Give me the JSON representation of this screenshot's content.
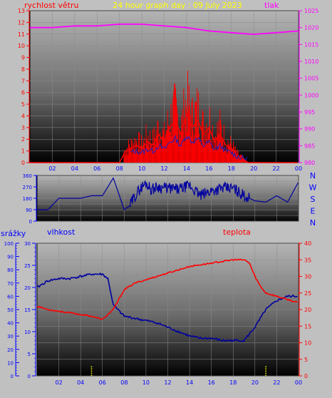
{
  "header": {
    "title": "24 hour graph day : 09 July 2023",
    "left_label": "rychlost větru",
    "right_label": "tlak"
  },
  "middle": {
    "compass": [
      "N",
      "W",
      "S",
      "E",
      "N"
    ]
  },
  "bottom": {
    "label_rain": "srážky",
    "label_humidity": "vlhkost",
    "label_temperature": "teplota"
  },
  "colors": {
    "wind": "#ff0000",
    "pressure": "#ff00ff",
    "direction": "#0000a0",
    "humidity": "#0000a0",
    "temperature": "#ff0000",
    "rain": "#ffff00",
    "axis_blue": "#0000ff",
    "axis_red": "#ff0000",
    "axis_magenta": "#ff00ff"
  },
  "chart_data": [
    {
      "type": "line",
      "name": "wind-pressure",
      "x_ticks": [
        "02",
        "04",
        "06",
        "08",
        "10",
        "12",
        "14",
        "16",
        "18",
        "20",
        "22",
        "00"
      ],
      "y_left": {
        "label": "rychlost větru",
        "ylim": [
          0,
          13
        ],
        "ticks": [
          0,
          1,
          2,
          3,
          4,
          5,
          6,
          7,
          8,
          9,
          10,
          11,
          12,
          13
        ]
      },
      "y_right": {
        "label": "tlak",
        "ylim": [
          980,
          1025
        ],
        "ticks": [
          980,
          985,
          990,
          995,
          1000,
          1005,
          1010,
          1015,
          1020,
          1025
        ]
      },
      "series": [
        {
          "name": "rychlost větru",
          "axis": "left",
          "x": [
            0,
            2,
            4,
            6,
            8,
            8.5,
            9,
            9.5,
            10,
            10.5,
            11,
            11.5,
            12,
            12.5,
            13,
            13.5,
            14,
            14.5,
            15,
            15.5,
            16,
            16.5,
            17,
            17.5,
            18,
            18.5,
            19,
            19.5,
            20,
            22,
            24
          ],
          "y": [
            0,
            0,
            0,
            0,
            0,
            1.5,
            2,
            2.5,
            2,
            3,
            2.5,
            4,
            3,
            5,
            6,
            4,
            7,
            5,
            6,
            4,
            5,
            3,
            4,
            2.5,
            2,
            1,
            0.5,
            0,
            0,
            0,
            0
          ]
        },
        {
          "name": "tlak",
          "axis": "right",
          "x": [
            0,
            2,
            4,
            6,
            8,
            10,
            12,
            14,
            16,
            18,
            20,
            22,
            24
          ],
          "y": [
            1020,
            1020,
            1020.5,
            1020.5,
            1021,
            1021,
            1020.5,
            1020,
            1019,
            1018.5,
            1018,
            1018.5,
            1019
          ]
        }
      ]
    },
    {
      "type": "line",
      "name": "wind-direction",
      "x_ticks": [
        "02",
        "04",
        "06",
        "08",
        "10",
        "12",
        "14",
        "16",
        "18",
        "20",
        "22",
        "00"
      ],
      "y_left": {
        "ylim": [
          0,
          360
        ],
        "ticks": [
          0,
          45,
          90,
          135,
          180,
          225,
          270,
          315,
          360
        ]
      },
      "series": [
        {
          "name": "direction",
          "x": [
            0,
            1,
            2,
            3,
            4,
            5,
            6,
            7,
            8,
            8.5,
            9,
            9.5,
            10,
            10.5,
            11,
            12,
            13,
            14,
            15,
            16,
            17,
            18,
            19,
            20,
            21,
            22,
            23,
            24
          ],
          "y": [
            90,
            90,
            180,
            180,
            180,
            200,
            200,
            340,
            90,
            120,
            200,
            260,
            300,
            250,
            270,
            260,
            250,
            280,
            200,
            240,
            260,
            260,
            200,
            160,
            150,
            200,
            150,
            310
          ]
        }
      ]
    },
    {
      "type": "line",
      "name": "humidity-temperature-rain",
      "x_ticks": [
        "02",
        "04",
        "06",
        "08",
        "10",
        "12",
        "14",
        "16",
        "18",
        "20",
        "22",
        "00"
      ],
      "y_rain": {
        "label": "srážky",
        "ylim": [
          0,
          100
        ],
        "ticks": [
          0,
          10,
          20,
          30,
          40,
          50,
          60,
          70,
          80,
          90,
          100
        ]
      },
      "y_humidity": {
        "label": "vlhkost",
        "ylim": [
          0,
          30
        ],
        "ticks": [
          0,
          5,
          10,
          15,
          20,
          25,
          30
        ]
      },
      "y_temperature": {
        "label": "teplota",
        "ylim": [
          0,
          40
        ],
        "ticks": [
          0,
          5,
          10,
          15,
          20,
          25,
          30,
          35,
          40
        ]
      },
      "series": [
        {
          "name": "vlhkost",
          "axis": "humidity",
          "x": [
            0,
            1,
            2,
            3,
            4,
            5,
            6,
            6.5,
            7,
            8,
            9,
            10,
            11,
            12,
            13,
            14,
            15,
            16,
            17,
            18,
            19,
            20,
            21,
            22,
            23,
            24
          ],
          "y": [
            20,
            21.5,
            22,
            22,
            22.5,
            23,
            23,
            22,
            16,
            13.5,
            13,
            12.5,
            12,
            11,
            10,
            9,
            8.5,
            8.5,
            8,
            8,
            8,
            11,
            15,
            17,
            18,
            18
          ]
        },
        {
          "name": "teplota",
          "axis": "temperature",
          "x": [
            0,
            1,
            2,
            3,
            4,
            5,
            6,
            7,
            8,
            9,
            10,
            11,
            12,
            13,
            14,
            15,
            16,
            17,
            18,
            19,
            19.5,
            20,
            20.5,
            21,
            22,
            23,
            24
          ],
          "y": [
            21,
            20,
            19.5,
            19,
            18.5,
            18,
            17,
            20,
            26,
            28,
            29,
            30,
            31,
            32,
            33,
            33.5,
            34,
            34.5,
            35,
            35,
            34,
            30,
            27,
            25,
            24,
            23,
            22
          ]
        },
        {
          "name": "srážky",
          "axis": "rain",
          "type": "bar",
          "x": [
            5,
            21
          ],
          "y": [
            8,
            8
          ]
        }
      ]
    }
  ]
}
